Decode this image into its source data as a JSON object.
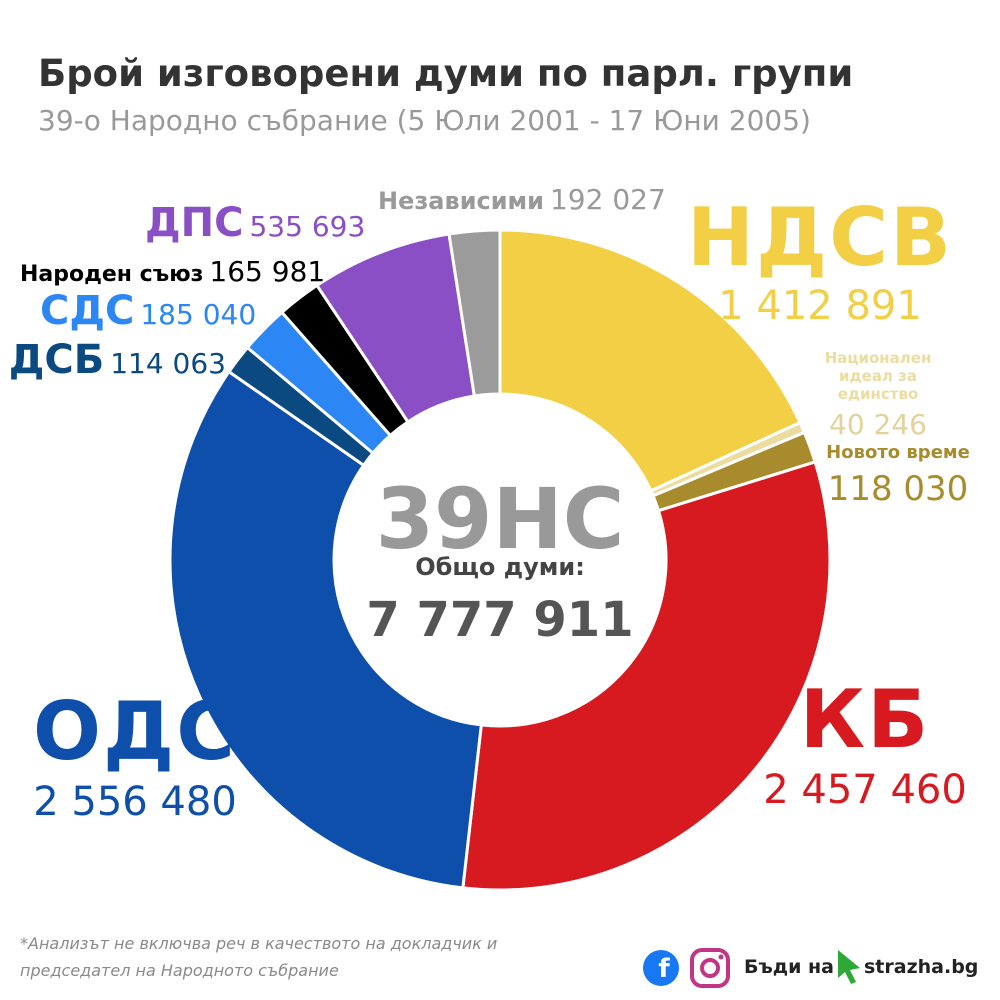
{
  "chart_data": {
    "type": "pie",
    "title": "Брой изговорени думи по парл. групи",
    "subtitle": "39-о Народно събрание (5 Юли 2001 - 17 Юни 2005)",
    "categories": [
      "НДСВ",
      "Национален идеал за единство",
      "Новото време",
      "КБ",
      "ОДС",
      "ДСБ",
      "СДС",
      "Народен съюз",
      "ДПС",
      "Независими"
    ],
    "values": [
      1412891,
      40246,
      118030,
      2457460,
      2556480,
      114063,
      185040,
      165981,
      535693,
      192027
    ],
    "value_labels": [
      "1 412 891",
      "40 246",
      "118 030",
      "2 457 460",
      "2 556 480",
      "114 063",
      "185 040",
      "165 981",
      "535 693",
      "192 027"
    ],
    "colors": [
      "#f2cf44",
      "#ecdca0",
      "#a88b2c",
      "#d71920",
      "#0d4faa",
      "#0a4a80",
      "#2c86f4",
      "#000000",
      "#8a4fc4",
      "#9b9b9b"
    ],
    "center_title": "39НС",
    "center_label": "Общо думи:",
    "total": {
      "value": 7777911,
      "label": "7 777 911"
    },
    "footnote": [
      "*Анализът не включва реч в качеството на докладчик и",
      "председател на Народното събрание"
    ],
    "brand": [
      "Бъди на",
      "strazha.bg"
    ]
  }
}
